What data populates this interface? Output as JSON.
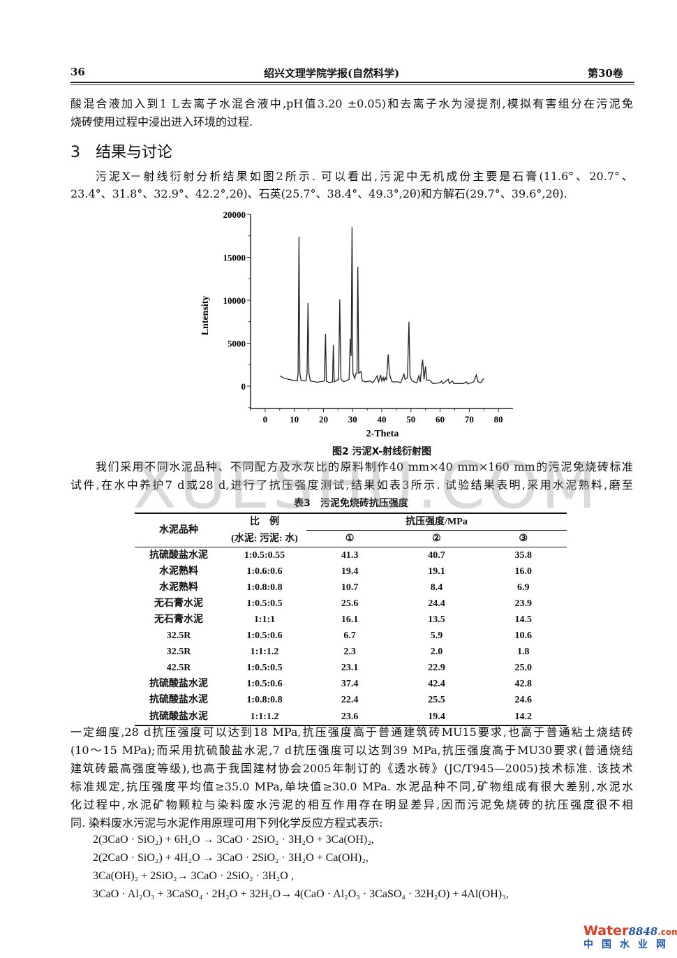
{
  "header": {
    "page_number": "36",
    "journal": "绍兴文理学院学报(自然科学)",
    "volume": "第30卷"
  },
  "para1": [
    "酸混合液加入到1 L去离子水混合液中,pH值3.20 ±0.05)和去离子水为浸提剂,模拟有害组分在污泥免",
    "烧砖使用过程中浸出进入环境的过程."
  ],
  "section_heading": "3　结果与讨论",
  "para2": [
    "污泥X－射线衍射分析结果如图2所示. 可以看出,污泥中无机成份主要是石膏(11.6°、20.7°、",
    "23.4°、31.8°、32.9°、42.2°,2θ)、石英(25.7°、38.4°、49.3°,2θ)和方解石(29.7°、39.6°,2θ)."
  ],
  "chart_data": {
    "type": "line",
    "title": "",
    "xlabel": "2-Theta",
    "ylabel": "Lntensity",
    "xlim": [
      -5,
      85
    ],
    "ylim": [
      -2600,
      20000
    ],
    "xticks": [
      "0",
      "10",
      "20",
      "30",
      "40",
      "50",
      "60",
      "70",
      "80"
    ],
    "yticks": [
      "0",
      "5000",
      "10000",
      "15000",
      "20000"
    ],
    "grid": false,
    "points": [
      [
        5,
        1200
      ],
      [
        6,
        1000
      ],
      [
        8,
        800
      ],
      [
        10,
        650
      ],
      [
        11,
        600
      ],
      [
        11.3,
        1500
      ],
      [
        11.6,
        17400
      ],
      [
        11.9,
        1500
      ],
      [
        12.3,
        700
      ],
      [
        14,
        600
      ],
      [
        14.4,
        1500
      ],
      [
        14.7,
        9700
      ],
      [
        15,
        1500
      ],
      [
        15.5,
        600
      ],
      [
        18,
        450
      ],
      [
        20.3,
        600
      ],
      [
        20.7,
        6100
      ],
      [
        21,
        600
      ],
      [
        22,
        400
      ],
      [
        23.1,
        500
      ],
      [
        23.4,
        4800
      ],
      [
        23.7,
        500
      ],
      [
        25.2,
        800
      ],
      [
        25.6,
        10100
      ],
      [
        26,
        800
      ],
      [
        27,
        500
      ],
      [
        28.8,
        800
      ],
      [
        29.2,
        5500
      ],
      [
        29.5,
        3500
      ],
      [
        29.8,
        18500
      ],
      [
        30.1,
        1500
      ],
      [
        30.7,
        900
      ],
      [
        31.2,
        1500
      ],
      [
        31.5,
        1500
      ],
      [
        31.8,
        13900
      ],
      [
        32.1,
        1500
      ],
      [
        32.9,
        1700
      ],
      [
        33.3,
        600
      ],
      [
        34.5,
        500
      ],
      [
        35.5,
        550
      ],
      [
        36,
        600
      ],
      [
        37,
        400
      ],
      [
        38.4,
        1200
      ],
      [
        38.9,
        500
      ],
      [
        39.6,
        1300
      ],
      [
        40,
        600
      ],
      [
        40.5,
        1000
      ],
      [
        40.8,
        600
      ],
      [
        41.2,
        1000
      ],
      [
        41.6,
        700
      ],
      [
        42.2,
        3700
      ],
      [
        42.6,
        1500
      ],
      [
        43,
        1000
      ],
      [
        43.5,
        500
      ],
      [
        45.5,
        500
      ],
      [
        46.5,
        400
      ],
      [
        47.6,
        1400
      ],
      [
        48,
        800
      ],
      [
        48.8,
        1000
      ],
      [
        49.3,
        7500
      ],
      [
        49.7,
        1200
      ],
      [
        50.2,
        700
      ],
      [
        51,
        500
      ],
      [
        52,
        400
      ],
      [
        52.7,
        1200
      ],
      [
        53.2,
        500
      ],
      [
        54,
        3100
      ],
      [
        54.5,
        800
      ],
      [
        55,
        2300
      ],
      [
        55.4,
        700
      ],
      [
        56.5,
        700
      ],
      [
        57.5,
        300
      ],
      [
        60,
        400
      ],
      [
        60.5,
        600
      ],
      [
        61,
        300
      ],
      [
        62.8,
        800
      ],
      [
        63.2,
        300
      ],
      [
        64.2,
        600
      ],
      [
        64.7,
        300
      ],
      [
        68,
        300
      ],
      [
        69,
        500
      ],
      [
        69.5,
        250
      ],
      [
        71.5,
        500
      ],
      [
        72.4,
        1300
      ],
      [
        73,
        500
      ],
      [
        74,
        400
      ],
      [
        75,
        900
      ]
    ]
  },
  "figure_caption": "图2 污泥X-射线衍射图",
  "para3": [
    "我们采用不同水泥品种、不同配方及水灰比的原料制作40 mm×40 mm×160 mm的污泥免烧砖标准",
    "试件,在水中养护7 d或28 d,进行了抗压强度测试,结果如表3所示. 试验结果表明,采用水泥熟料,磨至"
  ],
  "watermark": "XUESHU.COM",
  "table": {
    "caption": "表3　污泥免烧砖抗压强度",
    "headers": {
      "type": "水泥品种",
      "ratio": "比　例",
      "ratio_sub": "(水泥: 污泥: 水)",
      "strength": "抗压强度/MPa",
      "s1": "①",
      "s2": "②",
      "s3": "③"
    },
    "rows": [
      [
        "抗硫酸盐水泥",
        "1:0.5:0.55",
        "41.3",
        "40.7",
        "35.8"
      ],
      [
        "水泥熟料",
        "1:0.6:0.6",
        "19.4",
        "19.1",
        "16.0"
      ],
      [
        "水泥熟料",
        "1:0.8:0.8",
        "10.7",
        "8.4",
        "6.9"
      ],
      [
        "无石膏水泥",
        "1:0.5:0.5",
        "25.6",
        "24.4",
        "23.9"
      ],
      [
        "无石膏水泥",
        "1:1:1",
        "16.1",
        "13.5",
        "14.5"
      ],
      [
        "32.5R",
        "1:0.5:0.6",
        "6.7",
        "5.9",
        "10.6"
      ],
      [
        "32.5R",
        "1:1:1.2",
        "2.3",
        "2.0",
        "1.8"
      ],
      [
        "42.5R",
        "1:0.5:0.5",
        "23.1",
        "22.9",
        "25.0"
      ],
      [
        "抗硫酸盐水泥",
        "1:0.5:0.6",
        "37.4",
        "42.4",
        "42.8"
      ],
      [
        "抗硫酸盐水泥",
        "1:0.8:0.8",
        "22.4",
        "25.5",
        "24.6"
      ],
      [
        "抗硫酸盐水泥",
        "1:1:1.2",
        "23.6",
        "19.4",
        "14.2"
      ]
    ]
  },
  "para4": [
    "一定细度,28 d抗压强度可以达到18 MPa,抗压强度高于普通建筑砖MU15要求,也高于普通粘土烧结砖",
    "(10～15 MPa);而采用抗硫酸盐水泥,7 d抗压强度可以达到39 MPa,抗压强度高于MU30要求(普通烧结",
    "建筑砖最高强度等级),也高于我国建材协会2005年制订的《透水砖》(JC/T945—2005)技术标准. 该技术",
    "标准规定,抗压强度平均值≥35.0 MPa,单块值≥30.0 MPa. 水泥品种不同,矿物组成有很大差别,水泥水",
    "化过程中,水泥矿物颗粒与染料废水污泥的相互作用存在明显差异,因而污泥免烧砖的抗压强度很不相",
    "同. 染料废水污泥与水泥作用原理可用下列化学反应方程式表示:"
  ],
  "equations": [
    "2(3CaO · SiO₂)  + 6H₂O → 3CaO · 2SiO₂ · 3H₂O + 3Ca(OH)₂,",
    "2(2CaO · SiO₂)  + 4H₂O → 3CaO · 2SiO₂ · 3H₂O + Ca(OH)₂,",
    "3Ca(OH)₂ + 2SiO₂→ 3CaO · 2SiO₂ · 3H₂O ,",
    "3CaO · Al₂O₃ + 3CaSO₄ · 2H₂O  + 32H₂O→ 4(CaO · Al₂O₃ · 3CaSO₄ · 32H₂O)  + 4Al(OH)₃,"
  ],
  "logo": {
    "word": "Water",
    "number": "8848",
    "suffix": ".com",
    "chinese": "中国水业网"
  }
}
